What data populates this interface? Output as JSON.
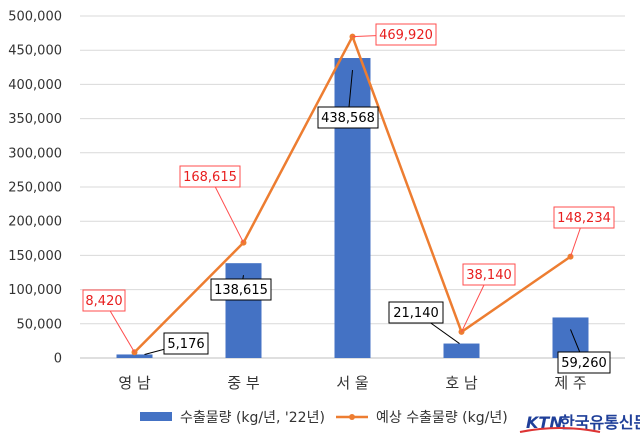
{
  "chart_data": {
    "type": "bar",
    "categories": [
      "영 남",
      "중 부",
      "서 울",
      "호 남",
      "제 주"
    ],
    "series": [
      {
        "name": "수출물량 (kg/년, '22년)",
        "type": "bar",
        "color": "#4472C4",
        "values": [
          5176,
          138615,
          438568,
          21140,
          59260
        ],
        "labels": [
          "5,176",
          "138,615",
          "438,568",
          "21,140",
          "59,260"
        ]
      },
      {
        "name": "예상 수출물량 (kg/년)",
        "type": "line",
        "color": "#ED7D31",
        "values": [
          8420,
          168615,
          469920,
          38140,
          148234
        ],
        "labels": [
          "8,420",
          "168,615",
          "469,920",
          "38,140",
          "148,234"
        ]
      }
    ],
    "yticks": [
      "0",
      "50,000",
      "100,000",
      "150,000",
      "200,000",
      "250,000",
      "300,000",
      "350,000",
      "400,000",
      "450,000",
      "500,000"
    ],
    "ylim": [
      0,
      500000
    ],
    "grid": true,
    "legend": "bottom"
  },
  "logo": {
    "brand": "KTN",
    "name": "한국유통신문"
  }
}
